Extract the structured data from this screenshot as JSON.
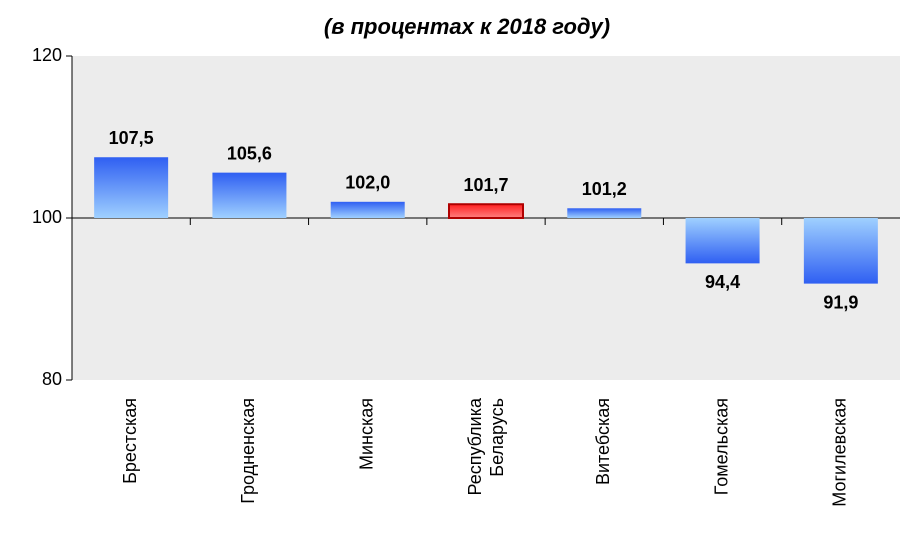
{
  "chart_data": {
    "type": "bar",
    "title": "(в процентах к 2018 году)",
    "categories": [
      "Брестская",
      "Гродненская",
      "Минская",
      "Республика Беларусь",
      "Витебская",
      "Гомельская",
      "Могилевская"
    ],
    "values": [
      107.5,
      105.6,
      102.0,
      101.7,
      101.2,
      94.4,
      91.9
    ],
    "value_labels": [
      "107,5",
      "105,6",
      "102,0",
      "101,7",
      "101,2",
      "94,4",
      "91,9"
    ],
    "colors": [
      "#3a6cf5",
      "#3a6cf5",
      "#3a6cf5",
      "#ff3030",
      "#3a6cf5",
      "#3a6cf5",
      "#3a6cf5"
    ],
    "baseline": 100,
    "ylim": [
      80,
      120
    ],
    "yticks": [
      80,
      100,
      120
    ]
  }
}
